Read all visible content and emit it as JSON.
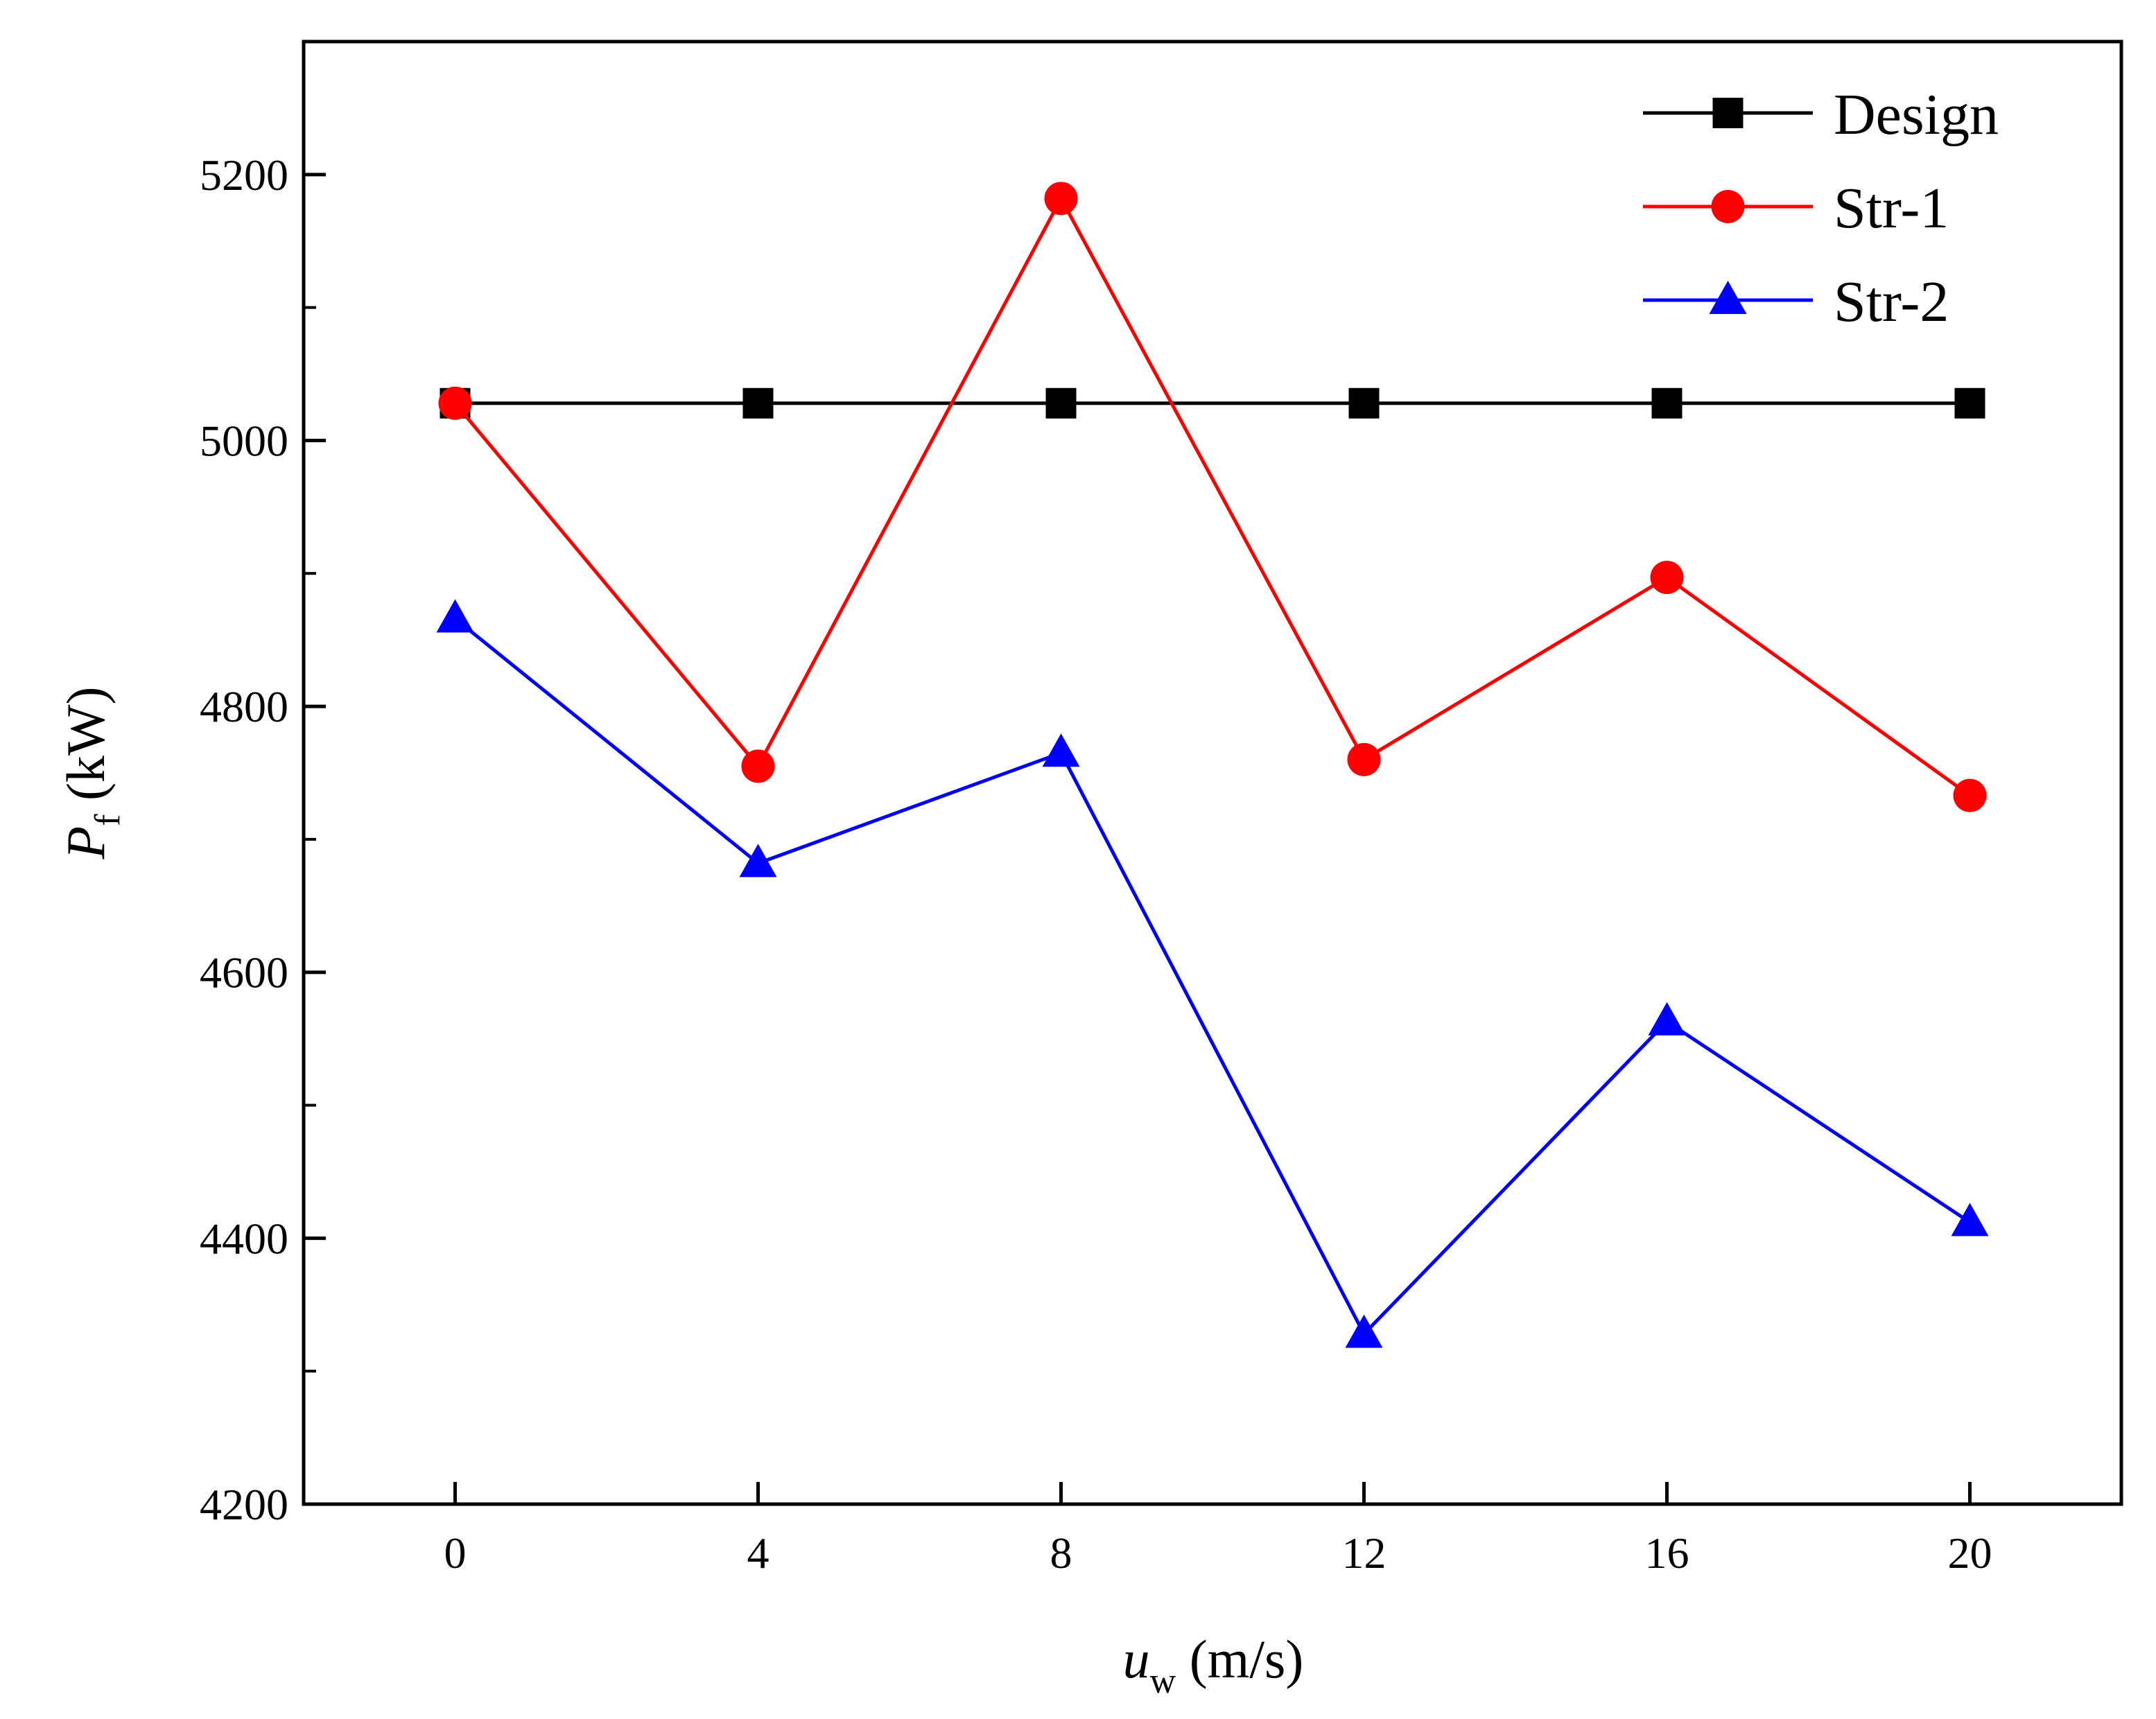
{
  "chart_data": {
    "type": "line",
    "title": "",
    "xlabel": {
      "var": "u",
      "sub": "w",
      "unit": " (m/s)"
    },
    "ylabel": {
      "var": "P",
      "sub": "f",
      "unit": " (kW)"
    },
    "x": [
      0,
      4,
      8,
      12,
      16,
      20
    ],
    "xticks": [
      "0",
      "4",
      "8",
      "12",
      "16",
      "20"
    ],
    "yticks": [
      "4200",
      "4400",
      "4600",
      "4800",
      "5000",
      "5200"
    ],
    "xlim": [
      -2,
      22
    ],
    "ylim": [
      4200,
      5300
    ],
    "grid": false,
    "legend_position": "top-right",
    "series": [
      {
        "name": "Design",
        "color": "#000000",
        "marker": "square",
        "values": [
          5028,
          5028,
          5028,
          5028,
          5028,
          5028
        ]
      },
      {
        "name": "Str-1",
        "color": "#ff0000",
        "marker": "circle",
        "values": [
          5028,
          4755,
          5182,
          4760,
          4897,
          4733
        ]
      },
      {
        "name": "Str-2",
        "color": "#0000ff",
        "marker": "triangle",
        "values": [
          4866,
          4682,
          4765,
          4328,
          4563,
          4412
        ]
      }
    ]
  }
}
